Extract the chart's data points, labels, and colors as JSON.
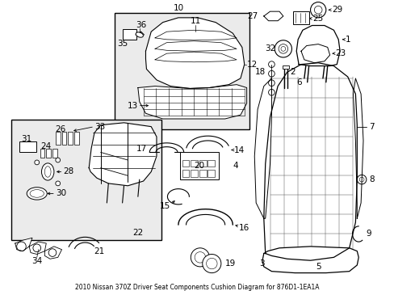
{
  "title": "2010 Nissan 370Z Driver Seat Components Cushion Diagram for 876D1-1EA1A",
  "background_color": "#ffffff",
  "fig_width": 4.89,
  "fig_height": 3.6,
  "dpi": 100,
  "font_size": 7.5
}
